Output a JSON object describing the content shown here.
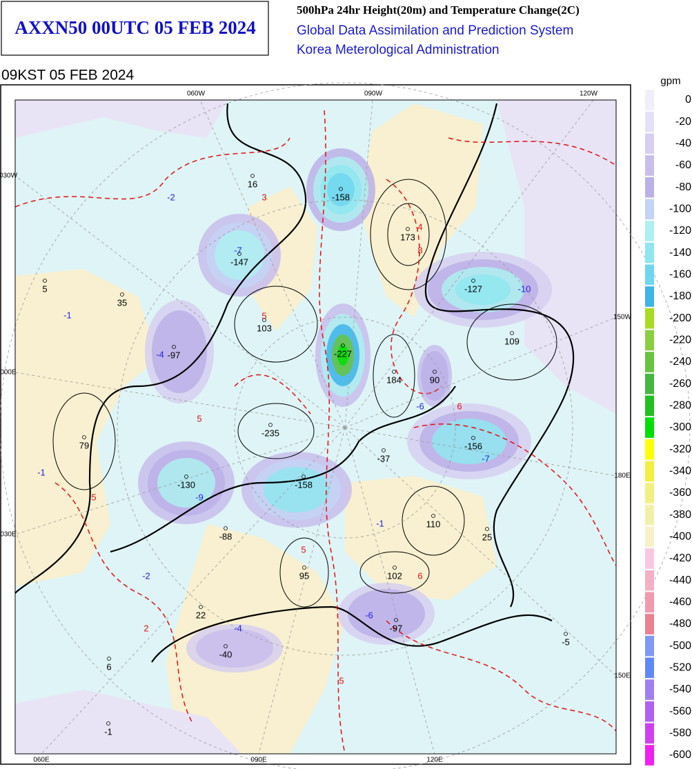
{
  "header": {
    "title": "AXXN50 00UTC 05 FEB 2024",
    "product": "500hPa 24hr Height(20m) and Temperature Change(2C)",
    "system": "Global Data Assimilation and Prediction System",
    "agency": "Korea Meterological Administration",
    "valid": "09KST 05 FEB 2024"
  },
  "map": {
    "grid_labels": [
      "060W",
      "090W",
      "120W",
      "030W",
      "150W",
      "000E",
      "180E",
      "030E",
      "150E",
      "060E",
      "090E",
      "120E"
    ],
    "height_labels": [
      16,
      -158,
      173,
      -147,
      5,
      35,
      -127,
      103,
      109,
      -97,
      -227,
      184,
      90,
      79,
      -235,
      -37,
      -156,
      -130,
      -158,
      110,
      -88,
      25,
      95,
      102,
      22,
      -97,
      -40,
      -5,
      6,
      -1
    ],
    "temp_labels": [
      3,
      4,
      8,
      5,
      5,
      6,
      5,
      5,
      6,
      2,
      5,
      -7,
      -2,
      -1,
      -4,
      -10,
      -6,
      -7,
      -9,
      -1,
      -1,
      -2,
      -4,
      -6
    ]
  },
  "colorbar": {
    "unit": "gpm",
    "ticks": [
      0,
      -20,
      -40,
      -60,
      -80,
      -100,
      -120,
      -140,
      -160,
      -180,
      -200,
      -220,
      -240,
      -260,
      -280,
      -300,
      -320,
      -340,
      -360,
      -380,
      -400,
      -420,
      -440,
      -460,
      -480,
      -500,
      -520,
      -540,
      -560,
      -580,
      -600
    ],
    "colors": [
      "#f0eefa",
      "#e4e0f5",
      "#d6cff0",
      "#c8bdec",
      "#bcb0e8",
      "#c4d4f4",
      "#aef0f0",
      "#90e6f0",
      "#70d6f0",
      "#40b4e8",
      "#a8dc20",
      "#88d040",
      "#66c440",
      "#44b840",
      "#22c020",
      "#00e000",
      "#ffff00",
      "#f2f040",
      "#f2f080",
      "#f2f0a8",
      "#f8f0c8",
      "#f8c8e0",
      "#f4b0c4",
      "#f09ab0",
      "#ec8090",
      "#8098f8",
      "#6088f8",
      "#a080f0",
      "#b060f0",
      "#d040f0",
      "#f020f0"
    ]
  }
}
